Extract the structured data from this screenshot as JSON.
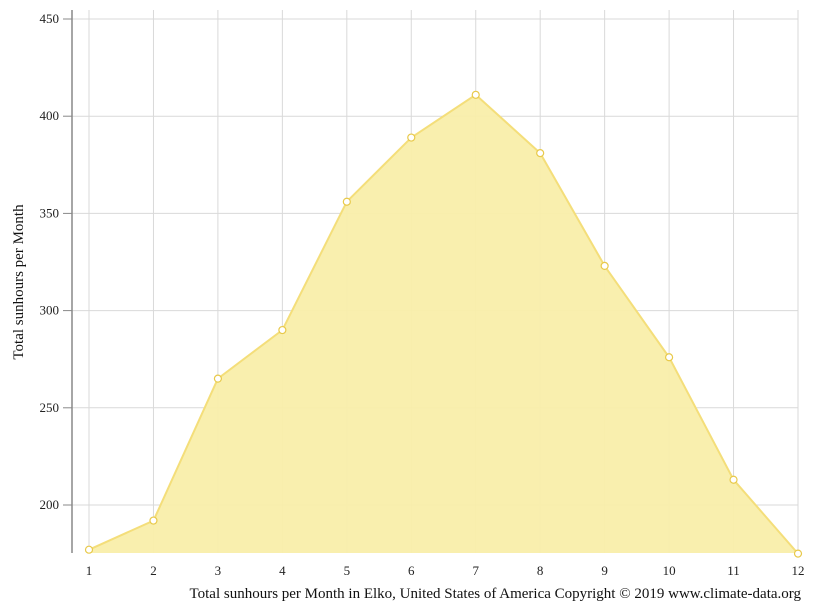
{
  "chart_data": {
    "type": "area",
    "x": [
      1,
      2,
      3,
      4,
      5,
      6,
      7,
      8,
      9,
      10,
      11,
      12
    ],
    "series": [
      {
        "values": [
          177,
          192,
          265,
          290,
          356,
          389,
          411,
          381,
          323,
          276,
          213,
          175
        ]
      }
    ],
    "xlabel": "Total sunhours per Month in Elko, United States of America Copyright © 2019 www.climate-data.org",
    "ylabel": "Total sunhours per Month",
    "x_ticks": [
      "1",
      "2",
      "3",
      "4",
      "5",
      "6",
      "7",
      "8",
      "9",
      "10",
      "11",
      "12"
    ],
    "y_ticks": [
      "200",
      "250",
      "300",
      "350",
      "400",
      "450"
    ],
    "ylim": [
      175,
      450
    ],
    "grid": true,
    "colors": {
      "fill": "#f9eeaa",
      "line": "#f4de7a",
      "marker_stroke": "#e8c94a",
      "grid": "#d9d9d9",
      "axis": "#888888"
    }
  }
}
